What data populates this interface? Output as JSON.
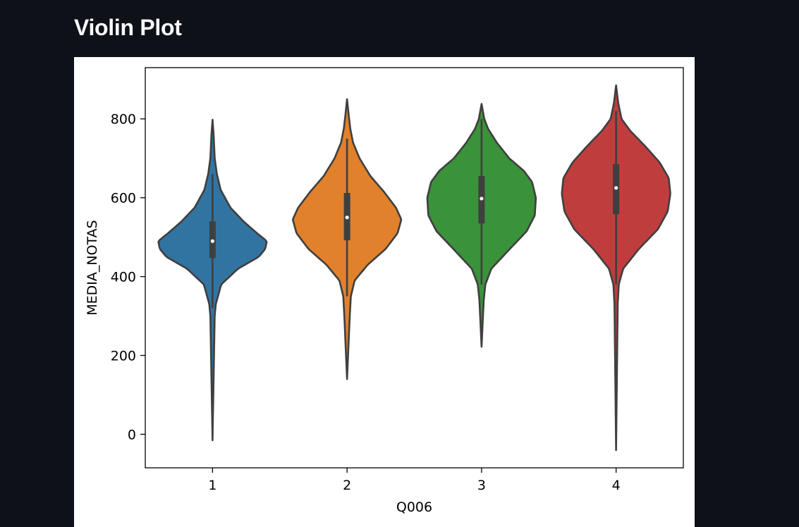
{
  "page": {
    "title": "Violin Plot",
    "background_color": "#0e1117",
    "title_color": "#fafafa"
  },
  "chart_data": {
    "type": "violin",
    "title": "",
    "xlabel": "Q006",
    "ylabel": "MEDIA_NOTAS",
    "categories": [
      "1",
      "2",
      "3",
      "4"
    ],
    "ylim": [
      -85,
      930
    ],
    "yticks": [
      0,
      200,
      400,
      600,
      800
    ],
    "grid": false,
    "colors": [
      "#3274a1",
      "#e1812c",
      "#3a923a",
      "#c03d3e"
    ],
    "outline_color": "#3f3f3f",
    "violins": [
      {
        "category": "1",
        "color": "#3274a1",
        "min": -15,
        "q1": 447,
        "median": 490,
        "q3": 540,
        "whisker_low": 320,
        "whisker_high": 660,
        "max": 798,
        "density": [
          [
            -15,
            0
          ],
          [
            300,
            0.04
          ],
          [
            330,
            0.06
          ],
          [
            380,
            0.16
          ],
          [
            420,
            0.47
          ],
          [
            450,
            0.85
          ],
          [
            470,
            0.97
          ],
          [
            490,
            1.0
          ],
          [
            510,
            0.82
          ],
          [
            540,
            0.57
          ],
          [
            575,
            0.33
          ],
          [
            620,
            0.15
          ],
          [
            660,
            0.08
          ],
          [
            700,
            0.04
          ],
          [
            760,
            0.02
          ],
          [
            798,
            0
          ]
        ]
      },
      {
        "category": "2",
        "color": "#e1812c",
        "min": 140,
        "q1": 492,
        "median": 550,
        "q3": 612,
        "whisker_low": 350,
        "whisker_high": 750,
        "max": 850,
        "density": [
          [
            140,
            0
          ],
          [
            300,
            0.05
          ],
          [
            350,
            0.07
          ],
          [
            390,
            0.14
          ],
          [
            430,
            0.38
          ],
          [
            470,
            0.71
          ],
          [
            510,
            0.93
          ],
          [
            545,
            1.0
          ],
          [
            575,
            0.9
          ],
          [
            615,
            0.68
          ],
          [
            655,
            0.43
          ],
          [
            700,
            0.23
          ],
          [
            740,
            0.11
          ],
          [
            775,
            0.06
          ],
          [
            810,
            0.03
          ],
          [
            850,
            0
          ]
        ]
      },
      {
        "category": "3",
        "color": "#3a923a",
        "min": 222,
        "q1": 535,
        "median": 598,
        "q3": 655,
        "whisker_low": 380,
        "whisker_high": 800,
        "max": 838,
        "density": [
          [
            222,
            0
          ],
          [
            340,
            0.04
          ],
          [
            380,
            0.07
          ],
          [
            420,
            0.18
          ],
          [
            470,
            0.52
          ],
          [
            515,
            0.83
          ],
          [
            555,
            0.98
          ],
          [
            600,
            1.0
          ],
          [
            640,
            0.93
          ],
          [
            668,
            0.78
          ],
          [
            700,
            0.51
          ],
          [
            740,
            0.28
          ],
          [
            775,
            0.12
          ],
          [
            800,
            0.05
          ],
          [
            838,
            0
          ]
        ]
      },
      {
        "category": "4",
        "color": "#c03d3e",
        "min": -40,
        "q1": 558,
        "median": 625,
        "q3": 685,
        "whisker_low": 380,
        "whisker_high": 820,
        "max": 885,
        "density": [
          [
            -40,
            0
          ],
          [
            330,
            0.03
          ],
          [
            380,
            0.05
          ],
          [
            420,
            0.13
          ],
          [
            470,
            0.42
          ],
          [
            520,
            0.77
          ],
          [
            565,
            0.95
          ],
          [
            610,
            1.0
          ],
          [
            650,
            0.97
          ],
          [
            690,
            0.8
          ],
          [
            730,
            0.54
          ],
          [
            770,
            0.26
          ],
          [
            800,
            0.1
          ],
          [
            840,
            0.04
          ],
          [
            885,
            0
          ]
        ]
      }
    ]
  }
}
